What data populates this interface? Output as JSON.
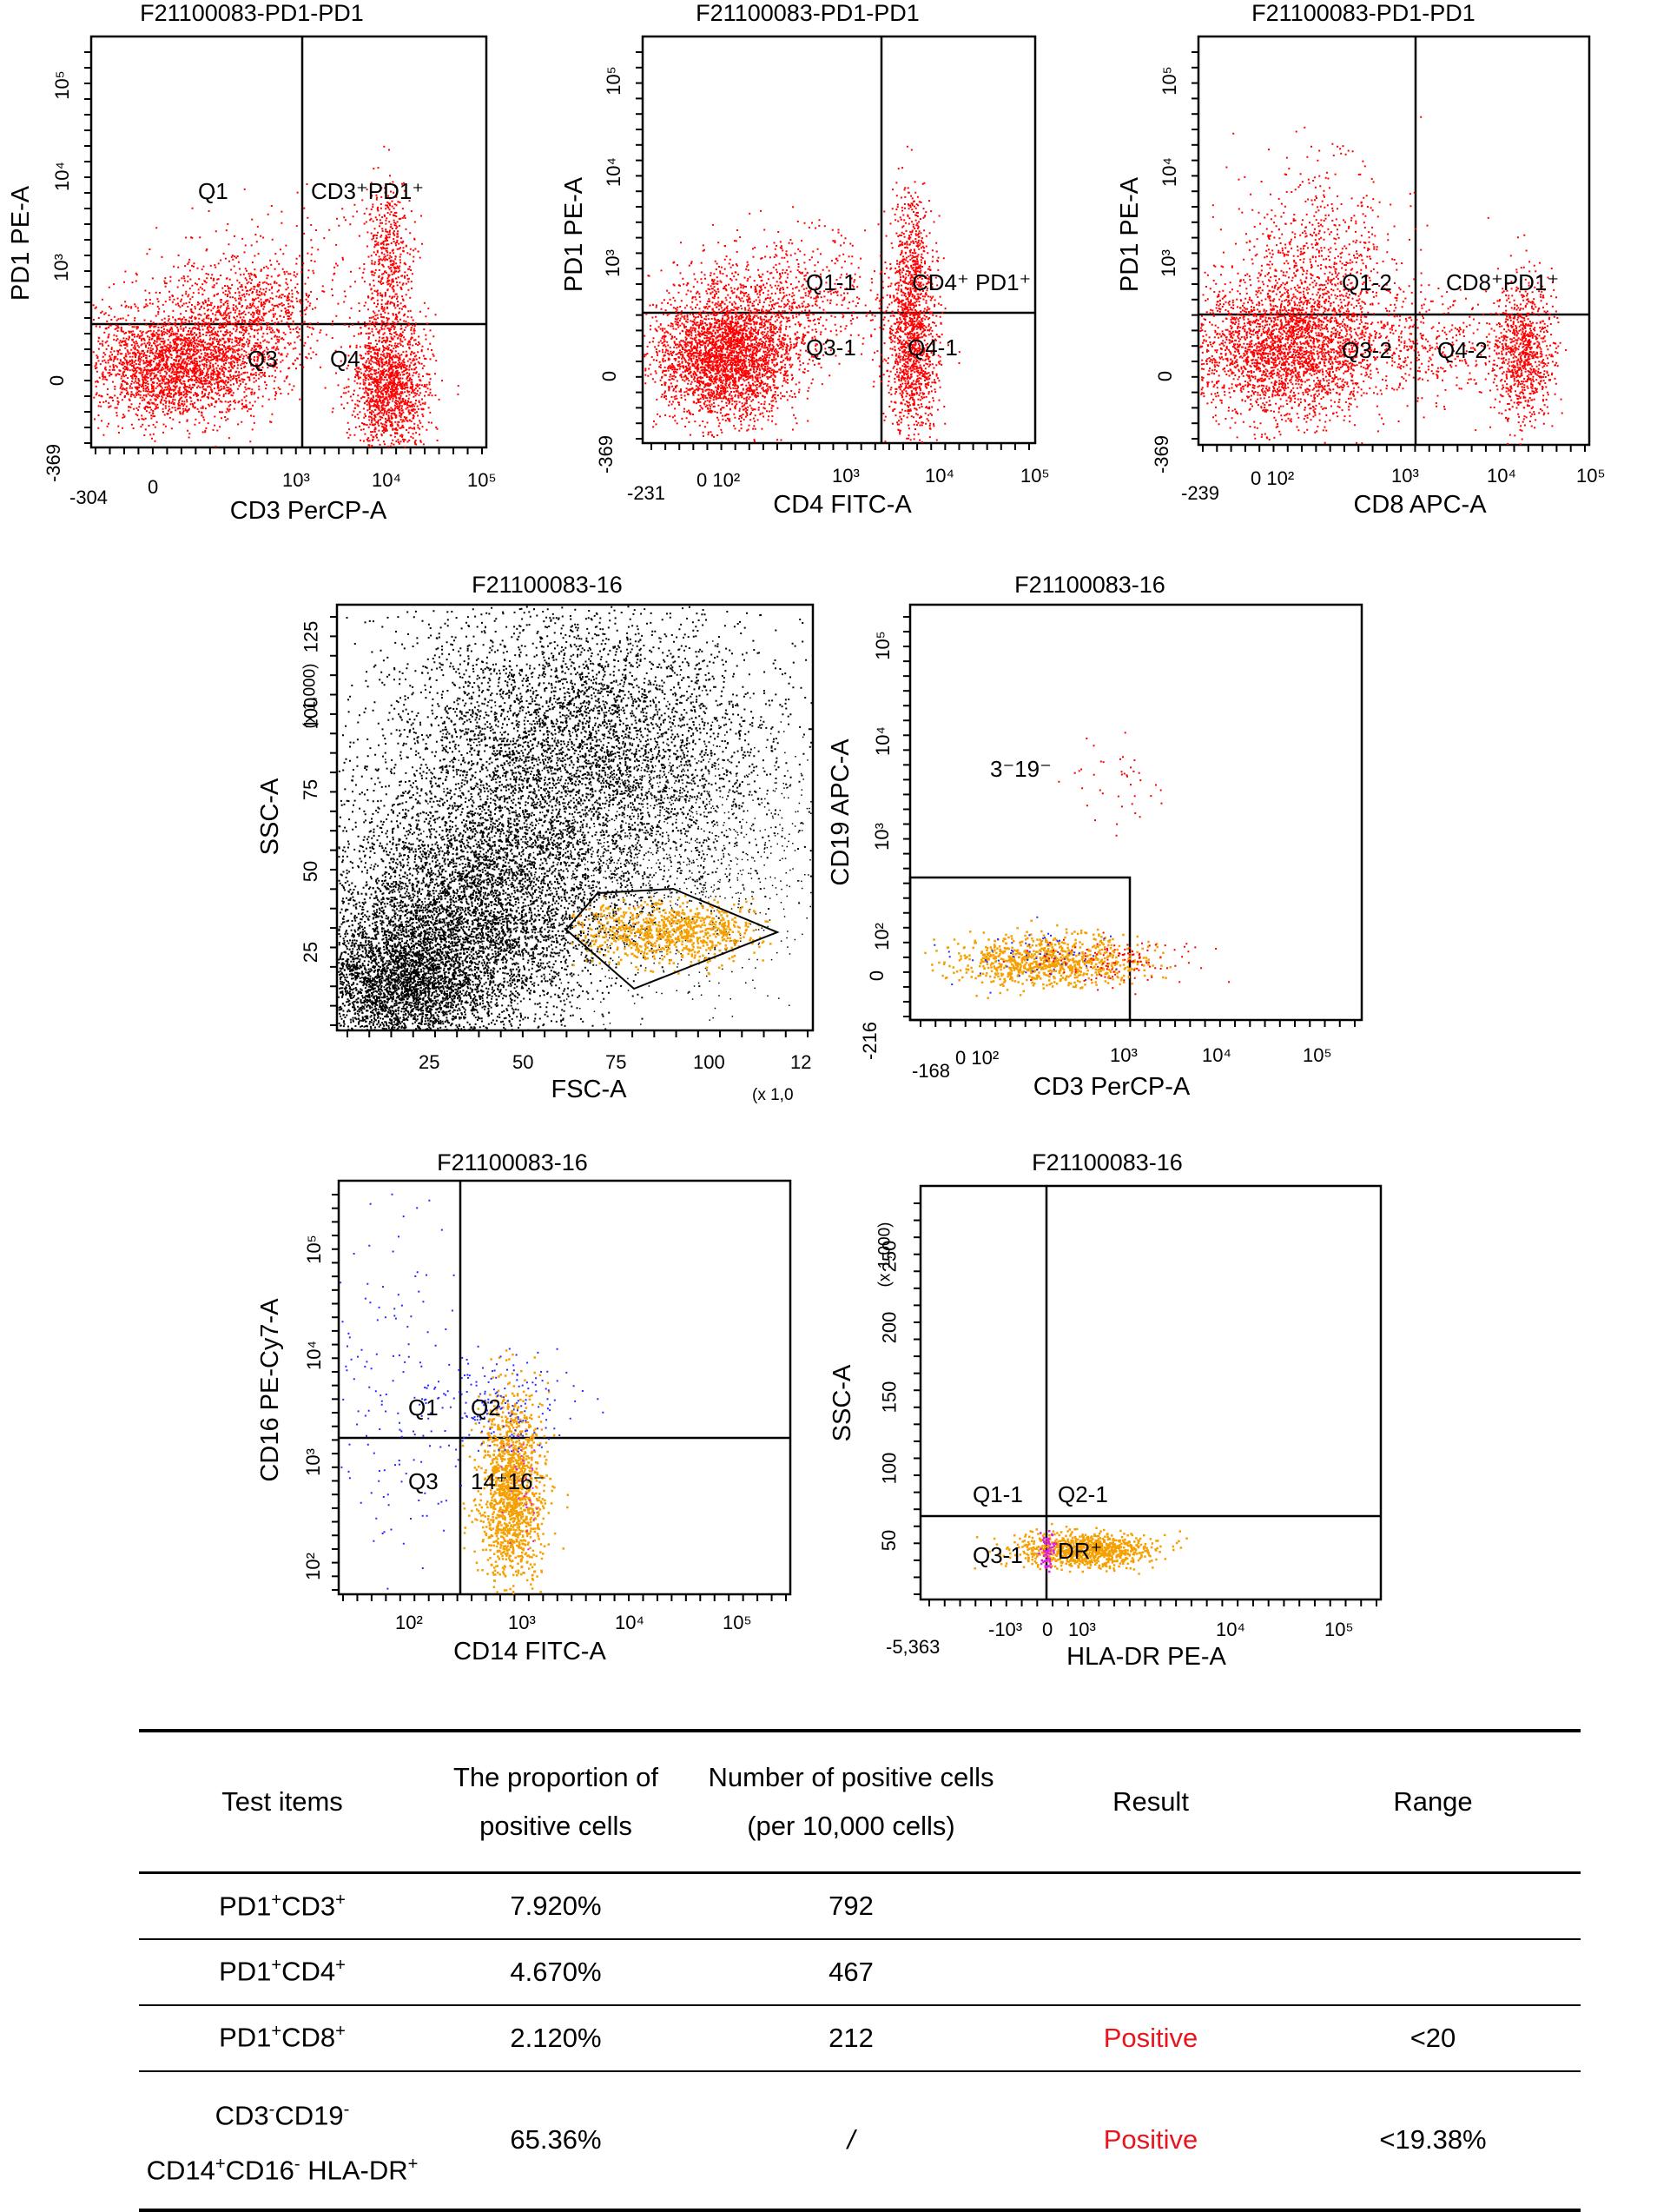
{
  "plots": [
    {
      "id": "p1",
      "title": "F21100083-PD1-PD1",
      "xlabel": "CD3 PerCP-A",
      "ylabel": "PD1 PE-A",
      "x_ticks": [
        "-304",
        "0",
        "10³",
        "10⁴",
        "10⁵"
      ],
      "y_ticks": [
        "-369",
        "0",
        "10³",
        "10⁴",
        "10⁵"
      ],
      "quadrant_labels": [
        "Q1",
        "CD3⁺PD1⁺",
        "Q3",
        "Q4"
      ],
      "dot_color": "#ff0000"
    },
    {
      "id": "p2",
      "title": "F21100083-PD1-PD1",
      "xlabel": "CD4 FITC-A",
      "ylabel": "PD1 PE-A",
      "x_ticks": [
        "-231",
        "0 10²",
        "10³",
        "10⁴",
        "10⁵"
      ],
      "y_ticks": [
        "-369",
        "0",
        "10³",
        "10⁴",
        "10⁵"
      ],
      "quadrant_labels": [
        "Q1-1",
        "CD4⁺ PD1⁺",
        "Q3-1",
        "Q4-1"
      ],
      "dot_color": "#ff0000"
    },
    {
      "id": "p3",
      "title": "F21100083-PD1-PD1",
      "xlabel": "CD8 APC-A",
      "ylabel": "PD1 PE-A",
      "x_ticks": [
        "-239",
        "0 10²",
        "10³",
        "10⁴",
        "10⁵"
      ],
      "y_ticks": [
        "-369",
        "0",
        "10³",
        "10⁴",
        "10⁵"
      ],
      "quadrant_labels": [
        "Q1-2",
        "CD8⁺PD1⁺",
        "Q3-2",
        "Q4-2"
      ],
      "dot_color": "#ff0000"
    },
    {
      "id": "p4",
      "title": "F21100083-16",
      "xlabel": "FSC-A",
      "ylabel": "SSC-A",
      "x_ticks": [
        "25",
        "50",
        "75",
        "100",
        "12"
      ],
      "y_ticks": [
        "25",
        "50",
        "75",
        "100",
        "125"
      ],
      "x_multiplier": "(x 1,0",
      "y_multiplier": "(x 1,000)",
      "dot_color": "#000000",
      "gate_color": "#f5a000"
    },
    {
      "id": "p5",
      "title": "F21100083-16",
      "xlabel": "CD3 PerCP-A",
      "ylabel": "CD19 APC-A",
      "x_ticks": [
        "-168",
        "0 10²",
        "10³",
        "10⁴",
        "10⁵"
      ],
      "y_ticks": [
        "-216",
        "0",
        "10²",
        "10³",
        "10⁴",
        "10⁵"
      ],
      "gate_label": "3⁻19⁻",
      "dot_colors": [
        "#f5a000",
        "#ff0000",
        "#2a2aff"
      ]
    },
    {
      "id": "p6",
      "title": "F21100083-16",
      "xlabel": "CD14 FITC-A",
      "ylabel": "CD16 PE-Cy7-A",
      "x_ticks": [
        "10²",
        "10³",
        "10⁴",
        "10⁵"
      ],
      "y_ticks": [
        "10²",
        "10³",
        "10⁴",
        "10⁵"
      ],
      "quadrant_labels": [
        "Q1",
        "Q2",
        "Q3",
        "14⁺16⁻"
      ],
      "dot_colors": [
        "#f5a000",
        "#2a2aff",
        "#e020e0"
      ]
    },
    {
      "id": "p7",
      "title": "F21100083-16",
      "xlabel": "HLA-DR PE-A",
      "ylabel": "SSC-A",
      "x_ticks": [
        "-5,363",
        "-10³",
        "0",
        "10³",
        "10⁴",
        "10⁵"
      ],
      "y_ticks": [
        "50",
        "100",
        "150",
        "200",
        "250"
      ],
      "y_multiplier": "(x 1,000)",
      "quadrant_labels": [
        "Q1-1",
        "Q2-1",
        "Q3-1",
        "DR⁺"
      ],
      "dot_colors": [
        "#f5a000",
        "#e020e0"
      ]
    }
  ],
  "table": {
    "headers": [
      "Test items",
      "The proportion of",
      "positive cells",
      "Number of positive cells",
      "(per 10,000 cells)",
      "Result",
      "Range"
    ],
    "rows": [
      {
        "item_a": "PD1",
        "item_b": "CD3",
        "proportion": "7.920%",
        "number": "792",
        "result": "",
        "range": ""
      },
      {
        "item_a": "PD1",
        "item_b": "CD4",
        "proportion": "4.670%",
        "number": "467",
        "result": "",
        "range": ""
      },
      {
        "item_a": "PD1",
        "item_b": "CD8",
        "proportion": "2.120%",
        "number": "212",
        "result": "Positive",
        "range": "<20"
      },
      {
        "item_l1a": "CD3",
        "item_l1b": "CD19",
        "item_l2a": "CD14",
        "item_l2b": "CD16",
        "item_l2c": "HLA-DR",
        "proportion": "65.36%",
        "number": "/",
        "result": "Positive",
        "range": "<19.38%"
      }
    ],
    "result_color": "#e8141e"
  }
}
